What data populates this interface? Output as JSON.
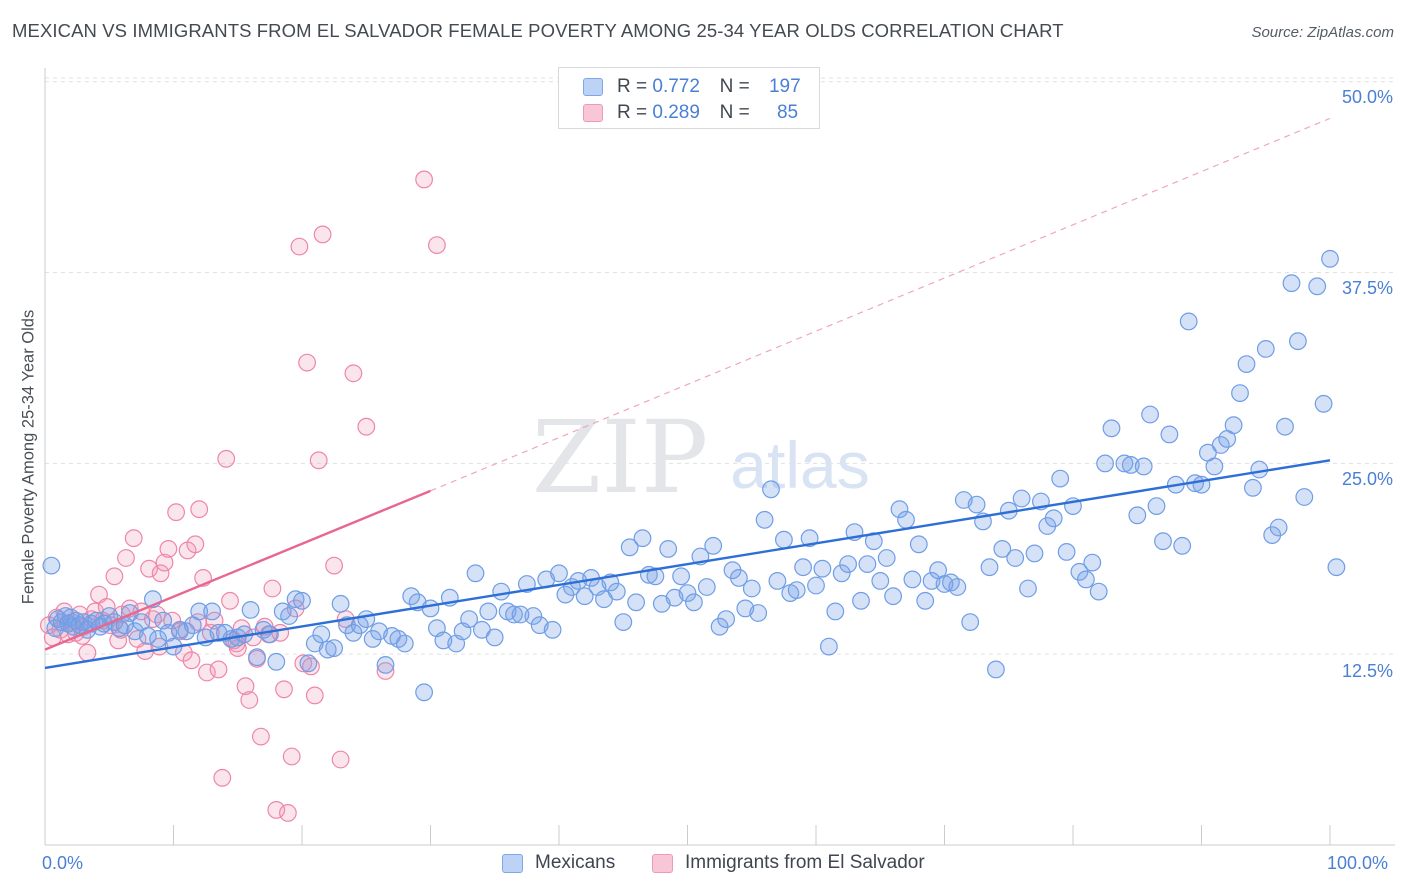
{
  "header": {
    "title": "MEXICAN VS IMMIGRANTS FROM EL SALVADOR FEMALE POVERTY AMONG 25-34 YEAR OLDS CORRELATION CHART",
    "source": "Source: ZipAtlas.com"
  },
  "watermark": {
    "zip": "ZIP",
    "atlas": "atlas"
  },
  "legend": {
    "r_label": "R =",
    "n_label": "N =",
    "rows": [
      {
        "r": "0.772",
        "n": "197",
        "color": "#6f9ee6"
      },
      {
        "r": "0.289",
        "n": "85",
        "color": "#ef86a9"
      }
    ]
  },
  "bottom_legend": [
    "Mexicans",
    "Immigrants from El Salvador"
  ],
  "chart_data": {
    "type": "scatter",
    "title": "MEXICAN VS IMMIGRANTS FROM EL SALVADOR FEMALE POVERTY AMONG 25-34 YEAR OLDS CORRELATION CHART",
    "xlabel": "",
    "ylabel": "Female Poverty Among 25-34 Year Olds",
    "xlim": [
      0,
      100
    ],
    "ylim": [
      0,
      52
    ],
    "x_tick_labels": [
      "0.0%",
      "100.0%"
    ],
    "y_ticks": [
      12.5,
      25.0,
      37.5,
      50.0
    ],
    "y_tick_labels": [
      "12.5%",
      "25.0%",
      "37.5%",
      "50.0%"
    ],
    "grid": "horizontal dashed",
    "legend_position": "top-center",
    "series": [
      {
        "name": "Mexicans",
        "color": "#6f9ee6",
        "r": 0.772,
        "n": 197,
        "trend": {
          "x": [
            0,
            100
          ],
          "y": [
            11.6,
            25.2
          ],
          "style": "solid"
        },
        "points": [
          [
            0.5,
            18.3
          ],
          [
            0.8,
            14.2
          ],
          [
            1,
            14.8
          ],
          [
            1.3,
            14.6
          ],
          [
            1.6,
            15
          ],
          [
            1.8,
            14.5
          ],
          [
            2,
            14.9
          ],
          [
            2.2,
            14.3
          ],
          [
            2.4,
            14.7
          ],
          [
            2.7,
            14.4
          ],
          [
            3,
            14.6
          ],
          [
            3.3,
            14.1
          ],
          [
            3.6,
            14.5
          ],
          [
            4,
            14.7
          ],
          [
            4.3,
            14.3
          ],
          [
            4.6,
            14.5
          ],
          [
            5,
            15
          ],
          [
            5.4,
            14.6
          ],
          [
            5.8,
            14.2
          ],
          [
            6.2,
            14.4
          ],
          [
            6.6,
            15.2
          ],
          [
            7,
            14
          ],
          [
            7.5,
            14.6
          ],
          [
            8,
            13.7
          ],
          [
            8.4,
            16.1
          ],
          [
            8.8,
            13.5
          ],
          [
            9.2,
            14.7
          ],
          [
            9.6,
            13.9
          ],
          [
            10,
            13
          ],
          [
            10.5,
            14.1
          ],
          [
            11,
            14
          ],
          [
            11.5,
            14.4
          ],
          [
            12,
            15.3
          ],
          [
            12.5,
            13.6
          ],
          [
            13,
            15.3
          ],
          [
            13.5,
            13.9
          ],
          [
            14,
            13.9
          ],
          [
            14.5,
            13.5
          ],
          [
            15,
            13.6
          ],
          [
            15.5,
            13.8
          ],
          [
            16,
            15.4
          ],
          [
            16.5,
            12.3
          ],
          [
            17,
            14.1
          ],
          [
            17.5,
            13.8
          ],
          [
            18,
            12
          ],
          [
            18.5,
            15.3
          ],
          [
            19,
            15
          ],
          [
            19.5,
            16.1
          ],
          [
            20,
            16
          ],
          [
            20.5,
            11.9
          ],
          [
            21,
            13.2
          ],
          [
            21.5,
            13.8
          ],
          [
            22,
            12.8
          ],
          [
            22.5,
            12.9
          ],
          [
            23,
            15.8
          ],
          [
            23.5,
            14.4
          ],
          [
            24,
            13.9
          ],
          [
            24.5,
            14.4
          ],
          [
            25,
            14.8
          ],
          [
            25.5,
            13.5
          ],
          [
            26,
            14
          ],
          [
            26.5,
            11.8
          ],
          [
            27,
            13.7
          ],
          [
            27.5,
            13.5
          ],
          [
            28,
            13.2
          ],
          [
            28.5,
            16.3
          ],
          [
            29,
            15.9
          ],
          [
            29.5,
            10
          ],
          [
            30,
            15.5
          ],
          [
            30.5,
            14.2
          ],
          [
            31,
            13.4
          ],
          [
            31.5,
            16.2
          ],
          [
            32,
            13.2
          ],
          [
            32.5,
            14
          ],
          [
            33,
            14.8
          ],
          [
            33.5,
            17.8
          ],
          [
            34,
            14.1
          ],
          [
            34.5,
            15.3
          ],
          [
            35,
            13.6
          ],
          [
            35.5,
            16.6
          ],
          [
            36,
            15.3
          ],
          [
            36.5,
            15.1
          ],
          [
            37,
            15.1
          ],
          [
            37.5,
            17.1
          ],
          [
            38,
            15
          ],
          [
            38.5,
            14.4
          ],
          [
            39,
            17.4
          ],
          [
            39.5,
            14.1
          ],
          [
            40,
            17.8
          ],
          [
            40.5,
            16.4
          ],
          [
            41,
            16.9
          ],
          [
            41.5,
            17.3
          ],
          [
            42,
            16.3
          ],
          [
            42.5,
            17.5
          ],
          [
            43,
            16.9
          ],
          [
            43.5,
            16.1
          ],
          [
            44,
            17.2
          ],
          [
            44.5,
            16.6
          ],
          [
            45,
            14.6
          ],
          [
            45.5,
            19.5
          ],
          [
            46,
            15.9
          ],
          [
            46.5,
            20.1
          ],
          [
            47,
            17.7
          ],
          [
            47.5,
            17.6
          ],
          [
            48,
            15.8
          ],
          [
            48.5,
            19.4
          ],
          [
            49,
            16.2
          ],
          [
            49.5,
            17.6
          ],
          [
            50,
            16.5
          ],
          [
            50.5,
            15.9
          ],
          [
            51,
            18.9
          ],
          [
            51.5,
            16.9
          ],
          [
            52,
            19.6
          ],
          [
            52.5,
            14.3
          ],
          [
            53,
            14.8
          ],
          [
            53.5,
            18
          ],
          [
            54,
            17.5
          ],
          [
            54.5,
            15.5
          ],
          [
            55,
            16.8
          ],
          [
            55.5,
            15.2
          ],
          [
            56,
            21.3
          ],
          [
            56.5,
            23.3
          ],
          [
            57,
            17.3
          ],
          [
            57.5,
            20
          ],
          [
            58,
            16.5
          ],
          [
            58.5,
            16.7
          ],
          [
            59,
            18.2
          ],
          [
            59.5,
            20.1
          ],
          [
            60,
            17
          ],
          [
            60.5,
            18.1
          ],
          [
            61,
            13
          ],
          [
            61.5,
            15.3
          ],
          [
            62,
            17.8
          ],
          [
            62.5,
            18.4
          ],
          [
            63,
            20.5
          ],
          [
            63.5,
            16
          ],
          [
            64,
            18.4
          ],
          [
            64.5,
            19.9
          ],
          [
            65,
            17.3
          ],
          [
            65.5,
            18.8
          ],
          [
            66,
            16.3
          ],
          [
            66.5,
            22
          ],
          [
            67,
            21.3
          ],
          [
            67.5,
            17.4
          ],
          [
            68,
            19.7
          ],
          [
            68.5,
            16
          ],
          [
            69,
            17.3
          ],
          [
            69.5,
            18
          ],
          [
            70,
            17.1
          ],
          [
            70.5,
            17.2
          ],
          [
            71,
            16.9
          ],
          [
            71.5,
            22.6
          ],
          [
            72,
            14.6
          ],
          [
            72.5,
            22.3
          ],
          [
            73,
            21.2
          ],
          [
            73.5,
            18.2
          ],
          [
            74,
            11.5
          ],
          [
            74.5,
            19.4
          ],
          [
            75,
            21.9
          ],
          [
            75.5,
            18.8
          ],
          [
            76,
            22.7
          ],
          [
            76.5,
            16.8
          ],
          [
            77,
            19.1
          ],
          [
            77.5,
            22.5
          ],
          [
            78,
            20.9
          ],
          [
            78.5,
            21.4
          ],
          [
            79,
            24
          ],
          [
            79.5,
            19.2
          ],
          [
            80,
            22.2
          ],
          [
            80.5,
            17.9
          ],
          [
            81,
            17.4
          ],
          [
            81.5,
            18.5
          ],
          [
            82,
            16.6
          ],
          [
            82.5,
            25
          ],
          [
            83,
            27.3
          ],
          [
            84,
            25
          ],
          [
            84.5,
            24.9
          ],
          [
            85,
            21.6
          ],
          [
            85.5,
            24.8
          ],
          [
            86,
            28.2
          ],
          [
            86.5,
            22.2
          ],
          [
            87,
            19.9
          ],
          [
            87.5,
            26.9
          ],
          [
            88,
            23.6
          ],
          [
            88.5,
            19.6
          ],
          [
            89,
            34.3
          ],
          [
            89.5,
            23.7
          ],
          [
            90,
            23.6
          ],
          [
            90.5,
            25.7
          ],
          [
            91,
            24.8
          ],
          [
            91.5,
            26.2
          ],
          [
            92,
            26.6
          ],
          [
            92.5,
            27.5
          ],
          [
            93,
            29.6
          ],
          [
            93.5,
            31.5
          ],
          [
            94,
            23.4
          ],
          [
            94.5,
            24.6
          ],
          [
            95,
            32.5
          ],
          [
            95.5,
            20.3
          ],
          [
            96,
            20.8
          ],
          [
            96.5,
            27.4
          ],
          [
            97,
            36.8
          ],
          [
            97.5,
            33
          ],
          [
            98,
            22.8
          ],
          [
            99,
            36.6
          ],
          [
            99.5,
            28.9
          ],
          [
            100,
            38.4
          ],
          [
            100.5,
            18.2
          ]
        ]
      },
      {
        "name": "Immigrants from El Salvador",
        "color": "#ef86a9",
        "r": 0.289,
        "n": 85,
        "trend": {
          "x": [
            0,
            30
          ],
          "y": [
            12.8,
            23.2
          ],
          "style": "solid",
          "extended_dashed_to": [
            100,
            47.6
          ]
        },
        "points": [
          [
            0.3,
            14.4
          ],
          [
            0.6,
            13.6
          ],
          [
            0.9,
            14.9
          ],
          [
            1.2,
            14.1
          ],
          [
            1.5,
            15.3
          ],
          [
            1.8,
            13.8
          ],
          [
            2.1,
            14.6
          ],
          [
            2.4,
            13.9
          ],
          [
            2.7,
            15.1
          ],
          [
            3,
            14.3
          ],
          [
            3.3,
            12.6
          ],
          [
            3.6,
            14.8
          ],
          [
            3.9,
            15.3
          ],
          [
            4.2,
            16.4
          ],
          [
            4.5,
            14.7
          ],
          [
            4.8,
            15.6
          ],
          [
            5.1,
            14.4
          ],
          [
            5.4,
            17.6
          ],
          [
            5.7,
            13.4
          ],
          [
            6,
            15.1
          ],
          [
            6.3,
            18.8
          ],
          [
            6.6,
            15.5
          ],
          [
            6.9,
            20.1
          ],
          [
            7.2,
            13.5
          ],
          [
            7.5,
            15.3
          ],
          [
            7.8,
            12.7
          ],
          [
            8.1,
            18.1
          ],
          [
            8.4,
            14.8
          ],
          [
            8.7,
            15.1
          ],
          [
            9,
            17.8
          ],
          [
            9.3,
            18.5
          ],
          [
            9.6,
            19.4
          ],
          [
            9.9,
            14.7
          ],
          [
            10.2,
            21.8
          ],
          [
            10.5,
            14
          ],
          [
            10.8,
            12.6
          ],
          [
            11.1,
            19.3
          ],
          [
            11.4,
            12.1
          ],
          [
            11.7,
            19.7
          ],
          [
            12,
            22
          ],
          [
            12.3,
            17.5
          ],
          [
            12.6,
            11.3
          ],
          [
            12.9,
            13.9
          ],
          [
            13.2,
            14.7
          ],
          [
            13.5,
            11.5
          ],
          [
            13.8,
            4.4
          ],
          [
            14.1,
            25.3
          ],
          [
            14.4,
            16
          ],
          [
            14.7,
            13.4
          ],
          [
            15,
            12.9
          ],
          [
            15.3,
            14.2
          ],
          [
            15.6,
            10.4
          ],
          [
            15.9,
            9.5
          ],
          [
            16.2,
            13.6
          ],
          [
            16.5,
            12.2
          ],
          [
            16.8,
            7.1
          ],
          [
            17.1,
            14.3
          ],
          [
            17.4,
            13.8
          ],
          [
            17.7,
            16.8
          ],
          [
            18,
            2.3
          ],
          [
            18.3,
            13.9
          ],
          [
            18.6,
            10.2
          ],
          [
            18.9,
            2.1
          ],
          [
            19.2,
            5.8
          ],
          [
            19.5,
            15.5
          ],
          [
            19.8,
            39.2
          ],
          [
            20.1,
            11.9
          ],
          [
            20.4,
            31.6
          ],
          [
            20.7,
            11.7
          ],
          [
            21,
            9.8
          ],
          [
            21.3,
            25.2
          ],
          [
            21.6,
            40
          ],
          [
            22.5,
            18.3
          ],
          [
            23,
            5.6
          ],
          [
            23.4,
            14.8
          ],
          [
            24,
            30.9
          ],
          [
            25,
            27.4
          ],
          [
            26.5,
            11.4
          ],
          [
            29.5,
            43.6
          ],
          [
            30.5,
            39.3
          ],
          [
            2.9,
            13.7
          ],
          [
            5.9,
            14.1
          ],
          [
            8.9,
            13
          ],
          [
            11.9,
            14.6
          ],
          [
            14.9,
            13.2
          ]
        ]
      }
    ]
  }
}
